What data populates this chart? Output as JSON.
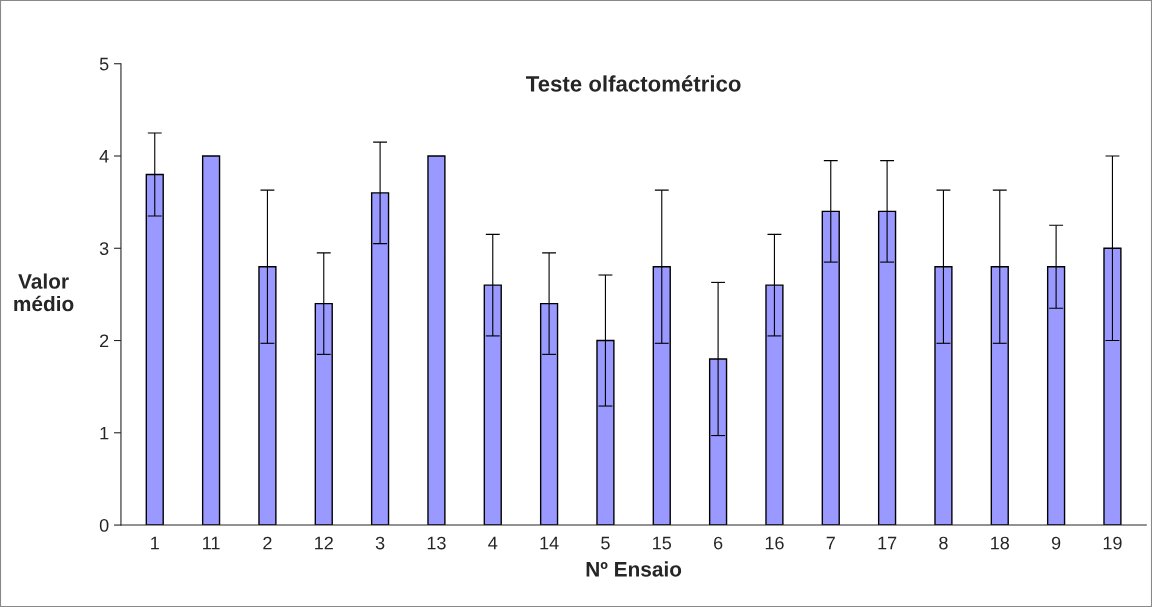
{
  "chart_data": {
    "type": "bar",
    "title": "Teste olfactométrico",
    "xlabel": "Nº Ensaio",
    "ylabel": "Valor\nmédio",
    "categories": [
      "1",
      "11",
      "2",
      "12",
      "3",
      "13",
      "4",
      "14",
      "5",
      "15",
      "6",
      "16",
      "7",
      "17",
      "8",
      "18",
      "9",
      "19"
    ],
    "values": [
      3.8,
      4.0,
      2.8,
      2.4,
      3.6,
      4.0,
      2.6,
      2.4,
      2.0,
      2.8,
      1.8,
      2.6,
      3.4,
      3.4,
      2.8,
      2.8,
      2.8,
      3.0
    ],
    "errors": [
      0.45,
      null,
      0.83,
      0.55,
      0.55,
      null,
      0.55,
      0.55,
      0.71,
      0.83,
      0.83,
      0.55,
      0.55,
      0.55,
      0.83,
      0.83,
      0.45,
      1.0
    ],
    "color": "#9999ff",
    "ylim": [
      0,
      5
    ],
    "yticks": [
      0,
      1,
      2,
      3,
      4,
      5
    ],
    "grid": false,
    "legend": false
  }
}
